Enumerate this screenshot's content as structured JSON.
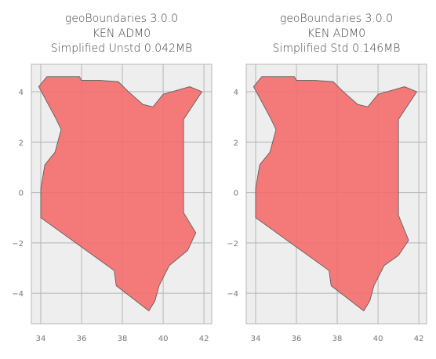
{
  "chart_data": [
    {
      "type": "map",
      "title": [
        "geoBoundaries 3.0.0",
        "KEN ADM0",
        "Simplified Unstd 0.042MB"
      ],
      "xlim": [
        33.54,
        42.38
      ],
      "ylim": [
        -5.21,
        5.09
      ],
      "xticks": [
        34,
        36,
        38,
        40,
        42
      ],
      "yticks": [
        {
          "value": -4,
          "label": "−4"
        },
        {
          "value": -2,
          "label": "−2"
        },
        0,
        2,
        4
      ],
      "grid": true,
      "color": "#f46d6d",
      "edgecolor": "#555555",
      "x": [
        33.9,
        34.3,
        35.9,
        36.0,
        36.9,
        37.8,
        38.3,
        39.0,
        39.5,
        40.0,
        41.3,
        41.9,
        41.0,
        41.0,
        41.6,
        41.2,
        40.3,
        39.8,
        39.6,
        39.3,
        37.7,
        37.6,
        34.0,
        34.0,
        34.2,
        34.7,
        35.0,
        34.7,
        34.3,
        34.1,
        33.9
      ],
      "y": [
        4.2,
        4.6,
        4.6,
        4.45,
        4.45,
        4.4,
        4.0,
        3.5,
        3.4,
        3.9,
        4.2,
        4.0,
        2.9,
        -0.8,
        -1.6,
        -2.3,
        -2.9,
        -3.7,
        -4.3,
        -4.7,
        -3.7,
        -3.1,
        -1.0,
        0.15,
        1.1,
        1.6,
        2.5,
        3.0,
        3.6,
        3.9,
        4.2
      ]
    },
    {
      "type": "map",
      "title": [
        "geoBoundaries 3.0.0",
        "KEN ADM0",
        "Simplified Std 0.146MB"
      ],
      "xlim": [
        33.54,
        42.38
      ],
      "ylim": [
        -5.21,
        5.09
      ],
      "xticks": [
        34,
        36,
        38,
        40,
        42
      ],
      "yticks": [
        {
          "value": -4,
          "label": "−4"
        },
        {
          "value": -2,
          "label": "−2"
        },
        0,
        2,
        4
      ],
      "grid": true,
      "color": "#f46d6d",
      "edgecolor": "#555555",
      "x": [
        33.9,
        34.3,
        35.9,
        36.0,
        36.9,
        37.8,
        38.3,
        39.0,
        39.5,
        40.0,
        41.3,
        41.9,
        41.0,
        41.0,
        41.5,
        41.0,
        40.3,
        39.8,
        39.6,
        39.3,
        37.7,
        37.6,
        34.0,
        34.0,
        34.2,
        34.7,
        35.0,
        34.7,
        34.3,
        34.1,
        33.9
      ],
      "y": [
        4.2,
        4.6,
        4.6,
        4.45,
        4.45,
        4.4,
        4.0,
        3.5,
        3.4,
        3.9,
        4.2,
        4.0,
        2.9,
        -0.9,
        -1.9,
        -2.5,
        -2.9,
        -3.7,
        -4.3,
        -4.7,
        -3.7,
        -3.1,
        -1.0,
        0.15,
        1.1,
        1.6,
        2.5,
        3.0,
        3.6,
        3.9,
        4.2
      ]
    }
  ]
}
